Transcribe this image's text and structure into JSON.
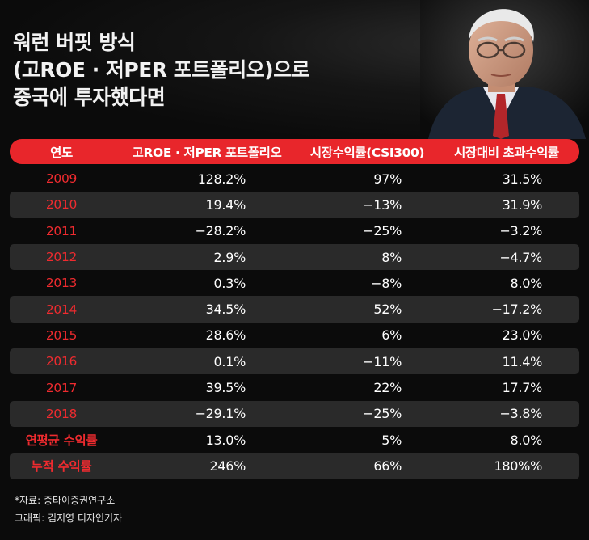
{
  "title": {
    "lines": [
      "워런 버핏 방식",
      "(고ROE · 저PER 포트폴리오)으로",
      "중국에 투자했다면"
    ]
  },
  "table": {
    "headers": [
      "연도",
      "고ROE · 저PER 포트폴리오",
      "시장수익률(CSI300)",
      "시장대비 초과수익률"
    ],
    "rows": [
      {
        "label": "2009",
        "portfolio": "128.2%",
        "market": "97%",
        "excess": "31.5%"
      },
      {
        "label": "2010",
        "portfolio": "19.4%",
        "market": "−13%",
        "excess": "31.9%"
      },
      {
        "label": "2011",
        "portfolio": "−28.2%",
        "market": "−25%",
        "excess": "−3.2%"
      },
      {
        "label": "2012",
        "portfolio": "2.9%",
        "market": "8%",
        "excess": "−4.7%"
      },
      {
        "label": "2013",
        "portfolio": "0.3%",
        "market": "−8%",
        "excess": "8.0%"
      },
      {
        "label": "2014",
        "portfolio": "34.5%",
        "market": "52%",
        "excess": "−17.2%"
      },
      {
        "label": "2015",
        "portfolio": "28.6%",
        "market": "6%",
        "excess": "23.0%"
      },
      {
        "label": "2016",
        "portfolio": "0.1%",
        "market": "−11%",
        "excess": "11.4%"
      },
      {
        "label": "2017",
        "portfolio": "39.5%",
        "market": "22%",
        "excess": "17.7%"
      },
      {
        "label": "2018",
        "portfolio": "−29.1%",
        "market": "−25%",
        "excess": "−3.8%"
      },
      {
        "label": "연평균 수익률",
        "portfolio": "13.0%",
        "market": "5%",
        "excess": "8.0%"
      },
      {
        "label": "누적 수익률",
        "portfolio": "246%",
        "market": "66%",
        "excess": "180%%"
      }
    ]
  },
  "footer": {
    "source": "*자료: 중타이증권연구소",
    "credit": "그래픽: 김지영 디자인기자"
  },
  "colors": {
    "accent": "#e8262b",
    "year_text": "#ef2b2f",
    "background": "#0b0b0b",
    "row_shade": "#2a2a2a"
  }
}
